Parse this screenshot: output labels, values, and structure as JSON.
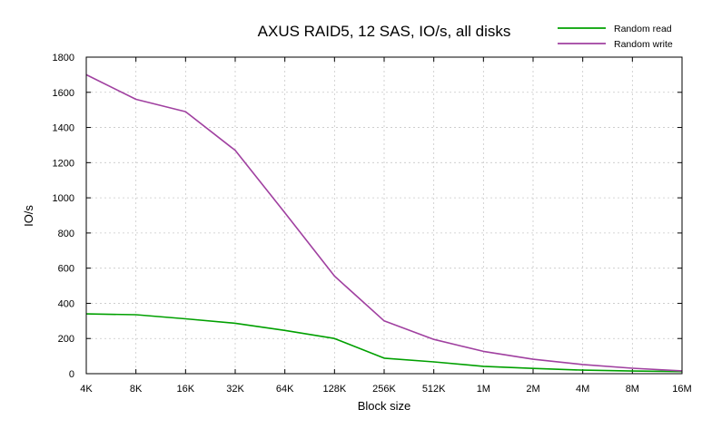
{
  "chart_data": {
    "type": "line",
    "title": "AXUS RAID5, 12 SAS, IO/s, all disks",
    "xlabel": "Block size",
    "ylabel": "IO/s",
    "categories": [
      "4K",
      "8K",
      "16K",
      "32K",
      "64K",
      "128K",
      "256K",
      "512K",
      "1M",
      "2M",
      "4M",
      "8M",
      "16M"
    ],
    "ylim": [
      0,
      1800
    ],
    "yticks": [
      0,
      200,
      400,
      600,
      800,
      1000,
      1200,
      1400,
      1600,
      1800
    ],
    "grid": true,
    "legend_position": "top-right",
    "series": [
      {
        "name": "Random read",
        "color": "#00a000",
        "values": [
          340,
          335,
          312,
          287,
          246,
          200,
          88,
          67,
          42,
          30,
          20,
          15,
          12
        ]
      },
      {
        "name": "Random write",
        "color": "#a040a0",
        "values": [
          1700,
          1560,
          1490,
          1270,
          915,
          555,
          300,
          195,
          127,
          82,
          52,
          31,
          16
        ]
      }
    ]
  }
}
